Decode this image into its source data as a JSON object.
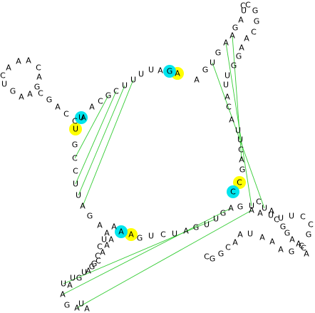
{
  "colors": {
    "background": "#ffffff",
    "text": "#000000",
    "highlight_yellow": "#ffff00",
    "highlight_cyan": "#00e5ee",
    "connector_green": "#33cc33"
  },
  "nucleotides": [
    {
      "id": "n1",
      "base": "A"
    },
    {
      "id": "n2",
      "base": "G"
    },
    {
      "id": "n3",
      "base": "A"
    },
    {
      "id": "n4",
      "base": "U"
    },
    {
      "id": "n5",
      "base": "U"
    },
    {
      "id": "n6",
      "base": "U"
    },
    {
      "id": "n7",
      "base": "U"
    },
    {
      "id": "n8",
      "base": "C"
    },
    {
      "id": "n9",
      "base": "G"
    },
    {
      "id": "n10",
      "base": "C"
    },
    {
      "id": "n11",
      "base": "A"
    },
    {
      "id": "n12",
      "base": "A"
    },
    {
      "id": "n13",
      "base": "C"
    },
    {
      "id": "n14",
      "base": "C"
    },
    {
      "id": "n15",
      "base": "A"
    },
    {
      "id": "n16",
      "base": "G"
    },
    {
      "id": "n17",
      "base": "C"
    },
    {
      "id": "n18",
      "base": "G"
    },
    {
      "id": "n19",
      "base": "A"
    },
    {
      "id": "n20",
      "base": "A"
    },
    {
      "id": "n21",
      "base": "G"
    },
    {
      "id": "n22",
      "base": "U"
    },
    {
      "id": "n23",
      "base": "C"
    },
    {
      "id": "n24",
      "base": "A"
    },
    {
      "id": "n25",
      "base": "A"
    },
    {
      "id": "n26",
      "base": "A"
    },
    {
      "id": "n27",
      "base": "C"
    },
    {
      "id": "n28",
      "base": "A"
    },
    {
      "id": "n29",
      "base": "U"
    },
    {
      "id": "n30",
      "base": "U"
    },
    {
      "id": "n31",
      "base": "G"
    },
    {
      "id": "n32",
      "base": "C"
    },
    {
      "id": "n33",
      "base": "C"
    },
    {
      "id": "n34",
      "base": "U"
    },
    {
      "id": "n35",
      "base": "U"
    },
    {
      "id": "n36",
      "base": "A"
    },
    {
      "id": "n37",
      "base": "G"
    },
    {
      "id": "n38",
      "base": "A"
    },
    {
      "id": "n39",
      "base": "A"
    },
    {
      "id": "n40",
      "base": "A"
    },
    {
      "id": "n41",
      "base": "U"
    },
    {
      "id": "n42",
      "base": "C"
    },
    {
      "id": "n43",
      "base": "C"
    },
    {
      "id": "n44",
      "base": "G"
    },
    {
      "id": "n45",
      "base": "A"
    },
    {
      "id": "n46",
      "base": "G"
    },
    {
      "id": "n47",
      "base": "A"
    },
    {
      "id": "n48",
      "base": "A"
    },
    {
      "id": "n49",
      "base": "A"
    },
    {
      "id": "n50",
      "base": "U"
    },
    {
      "id": "n51",
      "base": "A"
    },
    {
      "id": "n52",
      "base": "A"
    },
    {
      "id": "n53",
      "base": "G"
    },
    {
      "id": "n54",
      "base": "A"
    },
    {
      "id": "n55",
      "base": "U"
    },
    {
      "id": "n56",
      "base": "U"
    },
    {
      "id": "n57",
      "base": "U"
    },
    {
      "id": "n58",
      "base": "G"
    },
    {
      "id": "n59",
      "base": "C"
    },
    {
      "id": "n60",
      "base": "A"
    },
    {
      "id": "n61",
      "base": "A"
    },
    {
      "id": "n62",
      "base": "A"
    },
    {
      "id": "n63",
      "base": "G"
    },
    {
      "id": "n64",
      "base": "U"
    },
    {
      "id": "n65",
      "base": "C"
    },
    {
      "id": "n66",
      "base": "U"
    },
    {
      "id": "n67",
      "base": "A"
    },
    {
      "id": "n68",
      "base": "G"
    },
    {
      "id": "n69",
      "base": "U"
    },
    {
      "id": "n70",
      "base": "C"
    },
    {
      "id": "n71",
      "base": "C"
    },
    {
      "id": "n72",
      "base": "U"
    },
    {
      "id": "n73",
      "base": "G"
    },
    {
      "id": "n74",
      "base": "A"
    },
    {
      "id": "n75",
      "base": "G"
    },
    {
      "id": "n76",
      "base": "A"
    },
    {
      "id": "n77",
      "base": "A"
    },
    {
      "id": "n78",
      "base": "U"
    },
    {
      "id": "n79",
      "base": "U"
    },
    {
      "id": "n80",
      "base": "U"
    },
    {
      "id": "n81",
      "base": "C"
    },
    {
      "id": "n82",
      "base": "C"
    },
    {
      "id": "n83",
      "base": "G"
    },
    {
      "id": "n84",
      "base": "C"
    },
    {
      "id": "n85",
      "base": "G"
    },
    {
      "id": "n86",
      "base": "A"
    },
    {
      "id": "n87",
      "base": "A"
    },
    {
      "id": "n88",
      "base": "A"
    },
    {
      "id": "n89",
      "base": "U"
    },
    {
      "id": "n90",
      "base": "A"
    },
    {
      "id": "n91",
      "base": "A"
    },
    {
      "id": "n92",
      "base": "C"
    },
    {
      "id": "n93",
      "base": "G"
    },
    {
      "id": "n94",
      "base": "G"
    },
    {
      "id": "n95",
      "base": "C"
    },
    {
      "id": "n96",
      "base": "A"
    },
    {
      "id": "n97",
      "base": "G"
    },
    {
      "id": "n98",
      "base": "U"
    },
    {
      "id": "n99",
      "base": "G"
    },
    {
      "id": "n100",
      "base": "A"
    },
    {
      "id": "n101",
      "base": "A"
    },
    {
      "id": "n102",
      "base": "G"
    },
    {
      "id": "n103",
      "base": "A"
    },
    {
      "id": "n104",
      "base": "U"
    },
    {
      "id": "n105",
      "base": "C"
    },
    {
      "id": "n106",
      "base": "C"
    },
    {
      "id": "n107",
      "base": "G"
    },
    {
      "id": "n108",
      "base": "G"
    },
    {
      "id": "n109",
      "base": "C"
    },
    {
      "id": "n110",
      "base": "A"
    },
    {
      "id": "n111",
      "base": "A"
    },
    {
      "id": "n112",
      "base": "G"
    },
    {
      "id": "n113",
      "base": "G"
    },
    {
      "id": "n114",
      "base": "U"
    },
    {
      "id": "n115",
      "base": "U"
    },
    {
      "id": "n116",
      "base": "A"
    },
    {
      "id": "n117",
      "base": "C"
    },
    {
      "id": "n118",
      "base": "A"
    },
    {
      "id": "n119",
      "base": "U"
    },
    {
      "id": "n120",
      "base": "U"
    },
    {
      "id": "n121",
      "base": "C"
    },
    {
      "id": "n122",
      "base": "A"
    },
    {
      "id": "n123",
      "base": "G"
    },
    {
      "id": "n124",
      "base": "U"
    },
    {
      "id": "n125",
      "base": "C"
    },
    {
      "id": "n126",
      "base": "U"
    },
    {
      "id": "n127",
      "base": "A"
    },
    {
      "id": "n128",
      "base": "C"
    },
    {
      "id": "n129",
      "base": "G"
    },
    {
      "id": "n130",
      "base": "G"
    },
    {
      "id": "n131",
      "base": "A"
    },
    {
      "id": "n132",
      "base": "A"
    },
    {
      "id": "n133",
      "base": "C"
    },
    {
      "id": "n134",
      "base": "A"
    }
  ],
  "highlights": [
    {
      "nt": "n1",
      "color": "yellow"
    },
    {
      "nt": "n2",
      "color": "cyan"
    },
    {
      "nt": "n29",
      "color": "yellow"
    },
    {
      "nt": "n30",
      "color": "cyan"
    },
    {
      "nt": "n48",
      "color": "yellow"
    },
    {
      "nt": "n49",
      "color": "cyan"
    },
    {
      "nt": "n70",
      "color": "yellow"
    },
    {
      "nt": "n71",
      "color": "cyan"
    }
  ],
  "connectors": [
    [
      "n6",
      "n36"
    ],
    [
      "n8",
      "n34"
    ],
    [
      "n9",
      "n32"
    ],
    [
      "n7",
      "n35"
    ],
    [
      "n52",
      "n76"
    ],
    [
      "n54",
      "n74"
    ],
    [
      "n55",
      "n72"
    ],
    [
      "n98",
      "n126"
    ],
    [
      "n100",
      "n124"
    ],
    [
      "n101",
      "n122"
    ]
  ]
}
